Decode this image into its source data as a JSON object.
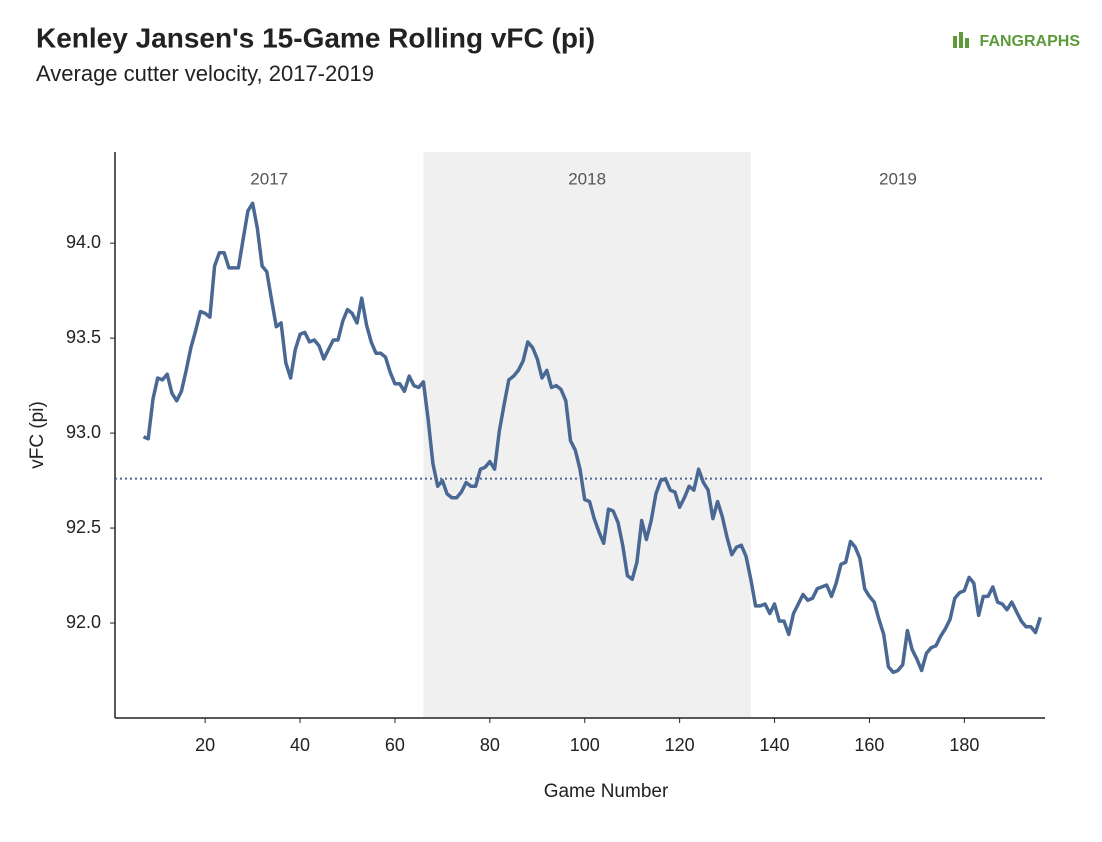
{
  "logo": "FANGRAPHS",
  "chart_data": {
    "type": "line",
    "title": "Kenley Jansen's 15-Game Rolling vFC (pi)",
    "subtitle": "Average cutter velocity, 2017-2019",
    "x_label": "Game Number",
    "y_label": "vFC (pi)",
    "color": "#4a6894",
    "reference_line": 92.76,
    "seasons": [
      {
        "label": "2017",
        "start": 1,
        "end": 66,
        "shaded": false
      },
      {
        "label": "2018",
        "start": 66,
        "end": 135,
        "shaded": true
      },
      {
        "label": "2019",
        "start": 135,
        "end": 197,
        "shaded": false
      }
    ],
    "xlim": [
      1,
      197
    ],
    "xticks": [
      20,
      40,
      60,
      80,
      100,
      120,
      140,
      160,
      180
    ],
    "ylim": [
      91.5,
      94.48
    ],
    "yticks": [
      {
        "value": 92.0,
        "label": "92.0"
      },
      92.5,
      {
        "value": 93.0,
        "label": "93.0"
      },
      93.5,
      {
        "value": 94.0,
        "label": "94.0"
      }
    ],
    "x": [
      7,
      8,
      9,
      10,
      11,
      12,
      13,
      14,
      15,
      16,
      17,
      18,
      19,
      20,
      21,
      22,
      23,
      24,
      25,
      26,
      27,
      28,
      29,
      30,
      31,
      32,
      33,
      34,
      35,
      36,
      37,
      38,
      39,
      40,
      41,
      42,
      43,
      44,
      45,
      46,
      47,
      48,
      49,
      50,
      51,
      52,
      53,
      54,
      55,
      56,
      57,
      58,
      59,
      60,
      61,
      62,
      63,
      64,
      65,
      66,
      67,
      68,
      69,
      70,
      71,
      72,
      73,
      74,
      75,
      76,
      77,
      78,
      79,
      80,
      81,
      82,
      83,
      84,
      85,
      86,
      87,
      88,
      89,
      90,
      91,
      92,
      93,
      94,
      95,
      96,
      97,
      98,
      99,
      100,
      101,
      102,
      103,
      104,
      105,
      106,
      107,
      108,
      109,
      110,
      111,
      112,
      113,
      114,
      115,
      116,
      117,
      118,
      119,
      120,
      121,
      122,
      123,
      124,
      125,
      126,
      127,
      128,
      129,
      130,
      131,
      132,
      133,
      134,
      135,
      136,
      137,
      138,
      139,
      140,
      141,
      142,
      143,
      144,
      145,
      146,
      147,
      148,
      149,
      150,
      151,
      152,
      153,
      154,
      155,
      156,
      157,
      158,
      159,
      160,
      161,
      162,
      163,
      164,
      165,
      166,
      167,
      168,
      169,
      170,
      171,
      172,
      173,
      174,
      175,
      176,
      177,
      178,
      179,
      180,
      181,
      182,
      183,
      184,
      185,
      186,
      187,
      188,
      189,
      190,
      191,
      192,
      193,
      194,
      195,
      196
    ],
    "values": [
      92.98,
      92.97,
      93.18,
      93.29,
      93.28,
      93.31,
      93.21,
      93.17,
      93.22,
      93.33,
      93.45,
      93.54,
      93.64,
      93.63,
      93.61,
      93.88,
      93.95,
      93.95,
      93.87,
      93.87,
      93.87,
      94.02,
      94.17,
      94.21,
      94.08,
      93.88,
      93.85,
      93.7,
      93.56,
      93.58,
      93.37,
      93.29,
      93.44,
      93.52,
      93.53,
      93.48,
      93.49,
      93.46,
      93.39,
      93.44,
      93.49,
      93.49,
      93.59,
      93.65,
      93.63,
      93.58,
      93.71,
      93.57,
      93.48,
      93.42,
      93.42,
      93.4,
      93.32,
      93.26,
      93.26,
      93.22,
      93.3,
      93.25,
      93.24,
      93.27,
      93.07,
      92.84,
      92.72,
      92.75,
      92.68,
      92.66,
      92.66,
      92.69,
      92.74,
      92.72,
      92.72,
      92.81,
      92.82,
      92.85,
      92.81,
      93.01,
      93.15,
      93.28,
      93.3,
      93.33,
      93.38,
      93.48,
      93.45,
      93.39,
      93.29,
      93.33,
      93.24,
      93.25,
      93.23,
      93.17,
      92.96,
      92.91,
      92.81,
      92.65,
      92.64,
      92.55,
      92.48,
      92.42,
      92.6,
      92.59,
      92.53,
      92.41,
      92.25,
      92.23,
      92.32,
      92.54,
      92.44,
      92.54,
      92.68,
      92.75,
      92.76,
      92.7,
      92.69,
      92.61,
      92.66,
      92.72,
      92.7,
      92.81,
      92.74,
      92.7,
      92.55,
      92.64,
      92.56,
      92.45,
      92.36,
      92.4,
      92.41,
      92.35,
      92.23,
      92.09,
      92.09,
      92.1,
      92.05,
      92.1,
      92.01,
      92.01,
      91.94,
      92.05,
      92.1,
      92.15,
      92.12,
      92.13,
      92.18,
      92.19,
      92.2,
      92.14,
      92.21,
      92.31,
      92.32,
      92.43,
      92.4,
      92.34,
      92.18,
      92.14,
      92.11,
      92.02,
      91.94,
      91.77,
      91.74,
      91.75,
      91.78,
      91.96,
      91.86,
      91.81,
      91.75,
      91.84,
      91.87,
      91.88,
      91.93,
      91.97,
      92.02,
      92.13,
      92.16,
      92.17,
      92.24,
      92.21,
      92.04,
      92.14,
      92.14,
      92.19,
      92.11,
      92.1,
      92.07,
      92.11,
      92.06,
      92.01,
      91.98,
      91.98,
      91.95,
      92.03
    ]
  }
}
